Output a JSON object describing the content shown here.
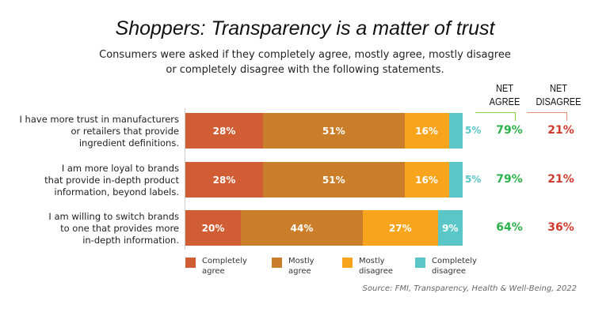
{
  "title": "Shoppers: Transparency is a matter of trust",
  "subtitle_lines": [
    "Consumers were asked if they completely agree, mostly agree, mostly disagree",
    "or completely disagree with the following statements."
  ],
  "net_headers": {
    "agree": [
      "NET",
      "AGREE"
    ],
    "disagree": [
      "NET",
      "DISAGREE"
    ]
  },
  "source": "Source: FMI, Transparency, Health & Well-Being, 2022",
  "chart_data": {
    "type": "bar",
    "orientation": "horizontal",
    "stacked": true,
    "xlim": [
      0,
      100
    ],
    "categories": [
      [
        "I have more trust in manufacturers",
        "or retailers that provide",
        "ingredient definitions."
      ],
      [
        "I am more loyal to brands",
        "that provide in-depth product",
        "information, beyond labels."
      ],
      [
        "I am willing to switch brands",
        "to one that provides more",
        "in-depth information."
      ]
    ],
    "series": [
      {
        "name": "Completely agree",
        "color": "#d05d34",
        "values": [
          28,
          28,
          20
        ]
      },
      {
        "name": "Mostly agree",
        "color": "#cb7e2a",
        "values": [
          51,
          51,
          44
        ]
      },
      {
        "name": "Mostly disagree",
        "color": "#f8a51d",
        "values": [
          16,
          16,
          27
        ]
      },
      {
        "name": "Completely disagree",
        "color": "#5ac6c8",
        "values": [
          5,
          5,
          9
        ]
      }
    ],
    "legend_lines": [
      [
        "Completely",
        "agree"
      ],
      [
        "Mostly",
        "agree"
      ],
      [
        "Mostly",
        "disagree"
      ],
      [
        "Completely",
        "disagree"
      ]
    ],
    "net_agree": [
      79,
      79,
      64
    ],
    "net_disagree": [
      21,
      21,
      36
    ],
    "net_agree_color": "#2bb14a",
    "net_disagree_color": "#cf3a2c",
    "legend": "bottom"
  }
}
